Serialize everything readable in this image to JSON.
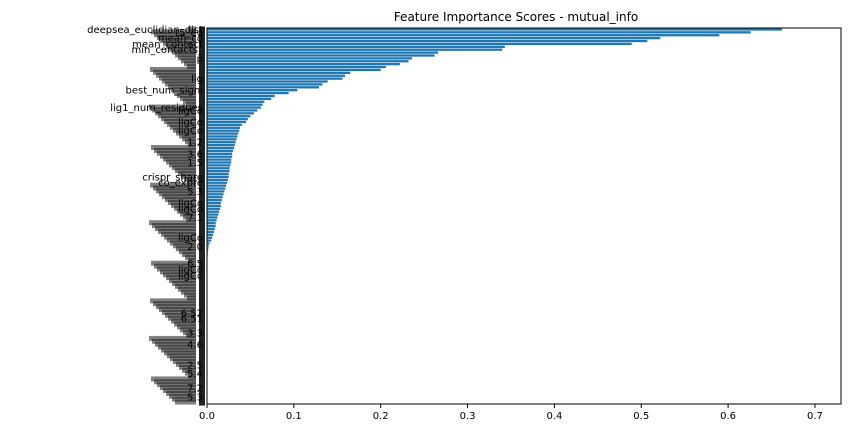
{
  "chart_data": {
    "type": "bar",
    "orientation": "horizontal",
    "title": "Feature Importance Scores - mutual_info",
    "xlabel": "",
    "ylabel": "",
    "xlim": [
      0,
      0.73
    ],
    "x_ticks": [
      0.0,
      0.1,
      0.2,
      0.3,
      0.4,
      0.5,
      0.6,
      0.7
    ],
    "x_tick_labels": [
      "0.0",
      "0.1",
      "0.2",
      "0.3",
      "0.4",
      "0.5",
      "0.6",
      "0.7"
    ],
    "bar_color": "#1f77b4",
    "legend": "none",
    "grid": false,
    "visible_y_labels": [
      {
        "label": "deepsea_euclidian_dist",
        "rank": 0
      },
      {
        "label": "t5_eu",
        "rank": 1
      },
      {
        "label": "mean_co",
        "rank": 3
      },
      {
        "label": "mean_contact",
        "rank": 5
      },
      {
        "label": "min_contacts_",
        "rank": 7
      },
      {
        "label": "p",
        "rank": 10
      },
      {
        "label": "lig",
        "rank": 17
      },
      {
        "label": "best_num_signi",
        "rank": 21
      },
      {
        "label": "lig1_num_residues",
        "rank": 27
      },
      {
        "label": "ligCo",
        "rank": 28
      },
      {
        "label": "ligCo",
        "rank": 32
      },
      {
        "label": "ligCo",
        "rank": 35
      },
      {
        "label": "1.2",
        "rank": 39
      },
      {
        "label": "3.6",
        "rank": 43
      },
      {
        "label": "1.5",
        "rank": 46
      },
      {
        "label": "crispr_share",
        "rank": 51
      },
      {
        "label": "co_expre",
        "rank": 53
      },
      {
        "label": "5.3",
        "rank": 56
      },
      {
        "label": "ligCo",
        "rank": 60
      },
      {
        "label": "ligCo",
        "rank": 62
      },
      {
        "label": "7.1",
        "rank": 65
      },
      {
        "label": "ligCo",
        "rank": 72
      },
      {
        "label": "2.0",
        "rank": 75
      },
      {
        "label": "6.5",
        "rank": 81
      },
      {
        "label": "ligCo",
        "rank": 83
      },
      {
        "label": "ligCo",
        "rank": 85
      },
      {
        "label": "6.52",
        "rank": 98
      },
      {
        "label": "6.51",
        "rank": 100
      },
      {
        "label": "3.3",
        "rank": 105
      },
      {
        "label": "4.6",
        "rank": 109
      },
      {
        "label": "2.5",
        "rank": 116
      },
      {
        "label": "5.4",
        "rank": 119
      },
      {
        "label": "7.2",
        "rank": 124
      },
      {
        "label": "5.3",
        "rank": 127
      }
    ],
    "values": [
      0.662,
      0.626,
      0.59,
      0.522,
      0.507,
      0.489,
      0.343,
      0.34,
      0.266,
      0.262,
      0.236,
      0.232,
      0.222,
      0.206,
      0.2,
      0.165,
      0.159,
      0.156,
      0.139,
      0.133,
      0.129,
      0.104,
      0.094,
      0.078,
      0.074,
      0.066,
      0.064,
      0.062,
      0.058,
      0.054,
      0.05,
      0.047,
      0.045,
      0.04,
      0.038,
      0.037,
      0.036,
      0.035,
      0.034,
      0.033,
      0.032,
      0.031,
      0.03,
      0.029,
      0.029,
      0.028,
      0.028,
      0.027,
      0.026,
      0.026,
      0.025,
      0.025,
      0.024,
      0.023,
      0.022,
      0.021,
      0.02,
      0.019,
      0.018,
      0.017,
      0.016,
      0.016,
      0.015,
      0.014,
      0.013,
      0.012,
      0.011,
      0.01,
      0.01,
      0.009,
      0.008,
      0.007,
      0.006,
      0.005,
      0.003,
      0.002,
      0.0015,
      0.001,
      0.0008,
      0.0006,
      0.0005,
      0.0004,
      0.0003,
      0.0002,
      0.0002,
      0.0001,
      0.0001,
      0.0001,
      0.0001,
      0.0001,
      0.0001,
      0.0001,
      0.0001,
      0.0001,
      0.0001,
      0.0001,
      0.0001,
      0.0001,
      0.0001,
      0.0001,
      0.0001,
      0.0001,
      0.0001,
      0.0001,
      0.0001,
      0.0001,
      0.0001,
      0.0001,
      0.0001,
      0.0001,
      0.0001,
      0.0001,
      0.0001,
      0.0001,
      0.0001,
      0.0001,
      0.0001,
      0.0001,
      0.0001,
      0.0001,
      0.0001,
      0.0001,
      0.0001,
      0.0001,
      0.0001,
      0.0001,
      0.0001,
      0.0001,
      0.0001,
      0.0001
    ]
  }
}
